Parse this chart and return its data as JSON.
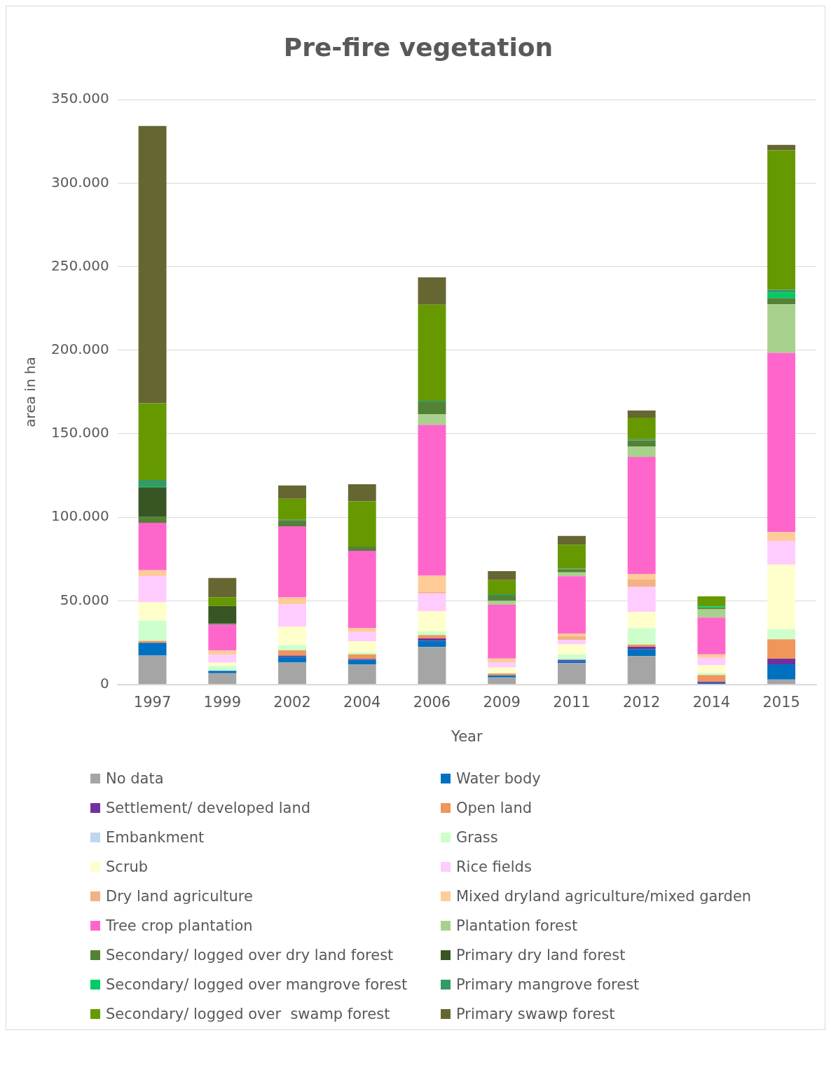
{
  "chart_data": {
    "type": "bar",
    "title": "Pre-fire vegetation",
    "xlabel": "Year",
    "ylabel": "area in ha",
    "stacked": true,
    "grid": "y",
    "legend": "bottom",
    "categories": [
      "1997",
      "1999",
      "2002",
      "2004",
      "2006",
      "2009",
      "2011",
      "2012",
      "2014",
      "2015"
    ],
    "ylim": [
      0,
      350000
    ],
    "yticks": [
      {
        "value": 0,
        "label": "0"
      },
      {
        "value": 50000,
        "label": "50.000"
      },
      {
        "value": 100000,
        "label": "100.000"
      },
      {
        "value": 150000,
        "label": "150.000"
      },
      {
        "value": 200000,
        "label": "200.000"
      },
      {
        "value": 250000,
        "label": "250.000"
      },
      {
        "value": 300000,
        "label": "300.000"
      },
      {
        "value": 350000,
        "label": "350.000"
      }
    ],
    "series": [
      {
        "name": "No data",
        "color": "#a5a5a5",
        "values": [
          17200,
          6700,
          13000,
          11900,
          22400,
          4100,
          12700,
          16900,
          null,
          2900
        ]
      },
      {
        "name": "Water body",
        "color": "#0070c0",
        "values": [
          7700,
          1400,
          3500,
          2800,
          3800,
          1300,
          1300,
          4200,
          800,
          9100
        ]
      },
      {
        "name": "Settlement/ developed land",
        "color": "#7030a0",
        "values": [
          0,
          null,
          700,
          500,
          1300,
          0,
          700,
          1400,
          800,
          3400
        ]
      },
      {
        "name": "Open land",
        "color": "#f0965a",
        "values": [
          1100,
          0,
          3200,
          2800,
          2000,
          1100,
          0,
          1300,
          4000,
          11600
        ]
      },
      {
        "name": "Embankment",
        "color": "#bdd7ee",
        "values": [
          0,
          0,
          0,
          0,
          0,
          0,
          0,
          0,
          0,
          0
        ]
      },
      {
        "name": "Grass",
        "color": "#ccffcc",
        "values": [
          12200,
          2800,
          3100,
          1100,
          2100,
          0,
          3200,
          9800,
          1300,
          6000
        ]
      },
      {
        "name": "Scrub",
        "color": "#ffffcc",
        "values": [
          10900,
          2100,
          11200,
          6700,
          12300,
          3600,
          6000,
          9800,
          4600,
          38700
        ]
      },
      {
        "name": "Rice fields",
        "color": "#ffccff",
        "values": [
          15700,
          4900,
          13300,
          5600,
          10600,
          2900,
          2800,
          14900,
          4400,
          14000
        ]
      },
      {
        "name": "Dry land agriculture",
        "color": "#f4b183",
        "values": [
          0,
          0,
          0,
          0,
          700,
          500,
          2100,
          4400,
          0,
          0
        ]
      },
      {
        "name": "Mixed dryland agriculture/mixed garden",
        "color": "#ffcc99",
        "values": [
          3500,
          2400,
          4100,
          2400,
          9900,
          2000,
          1700,
          3400,
          2100,
          5500
        ]
      },
      {
        "name": "Tree crop plantation",
        "color": "#ff66cc",
        "values": [
          28400,
          15500,
          42500,
          46200,
          90300,
          32200,
          34200,
          70100,
          22000,
          107200
        ]
      },
      {
        "name": "Plantation forest",
        "color": "#a9d18e",
        "values": [
          0,
          0,
          0,
          0,
          6200,
          2300,
          2400,
          6300,
          4900,
          29100
        ]
      },
      {
        "name": "Secondary/ logged over dry land forest",
        "color": "#548235",
        "values": [
          3500,
          600,
          3100,
          2500,
          7300,
          3100,
          1800,
          3500,
          1000,
          3800
        ]
      },
      {
        "name": "Primary dry land forest",
        "color": "#375623",
        "values": [
          17800,
          10500,
          400,
          0,
          0,
          0,
          0,
          0,
          0,
          0
        ]
      },
      {
        "name": "Secondary/ logged over mangrove forest",
        "color": "#00cc66",
        "values": [
          500,
          0,
          0,
          0,
          0,
          0,
          0,
          0,
          800,
          3100
        ]
      },
      {
        "name": "Primary mangrove forest",
        "color": "#339966",
        "values": [
          3800,
          0,
          400,
          0,
          800,
          800,
          400,
          700,
          0,
          1800
        ]
      },
      {
        "name": "Secondary/ logged over  swamp forest",
        "color": "#669900",
        "values": [
          45900,
          5300,
          12600,
          27000,
          57600,
          8500,
          14300,
          13000,
          6000,
          83500
        ]
      },
      {
        "name": "Primary swawp forest",
        "color": "#666633",
        "values": [
          166000,
          11500,
          8000,
          10300,
          16300,
          5400,
          5300,
          4200,
          0,
          3200
        ]
      }
    ]
  }
}
